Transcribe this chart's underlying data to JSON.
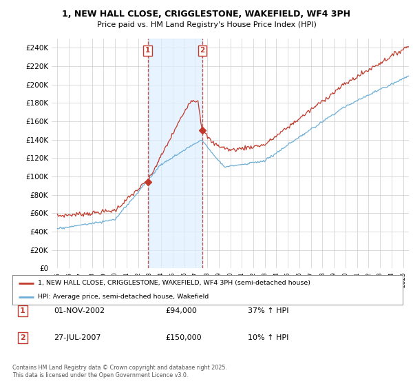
{
  "title": "1, NEW HALL CLOSE, CRIGGLESTONE, WAKEFIELD, WF4 3PH",
  "subtitle": "Price paid vs. HM Land Registry's House Price Index (HPI)",
  "yticks": [
    0,
    20000,
    40000,
    60000,
    80000,
    100000,
    120000,
    140000,
    160000,
    180000,
    200000,
    220000,
    240000
  ],
  "ytick_labels": [
    "£0",
    "£20K",
    "£40K",
    "£60K",
    "£80K",
    "£100K",
    "£120K",
    "£140K",
    "£160K",
    "£180K",
    "£200K",
    "£220K",
    "£240K"
  ],
  "ylim": [
    0,
    250000
  ],
  "xlim_start": 1994.5,
  "xlim_end": 2025.5,
  "hpi_color": "#6baed6",
  "price_color": "#c0392b",
  "marker_color": "#c0392b",
  "shade_color": "#ddeeff",
  "sale1_year": 2002.833,
  "sale1_price": 94000,
  "sale2_year": 2007.567,
  "sale2_price": 150000,
  "legend_label1": "1, NEW HALL CLOSE, CRIGGLESTONE, WAKEFIELD, WF4 3PH (semi-detached house)",
  "legend_label2": "HPI: Average price, semi-detached house, Wakefield",
  "table_row1": [
    "1",
    "01-NOV-2002",
    "£94,000",
    "37% ↑ HPI"
  ],
  "table_row2": [
    "2",
    "27-JUL-2007",
    "£150,000",
    "10% ↑ HPI"
  ],
  "footer": "Contains HM Land Registry data © Crown copyright and database right 2025.\nThis data is licensed under the Open Government Licence v3.0.",
  "background_color": "#ffffff",
  "grid_color": "#cccccc"
}
